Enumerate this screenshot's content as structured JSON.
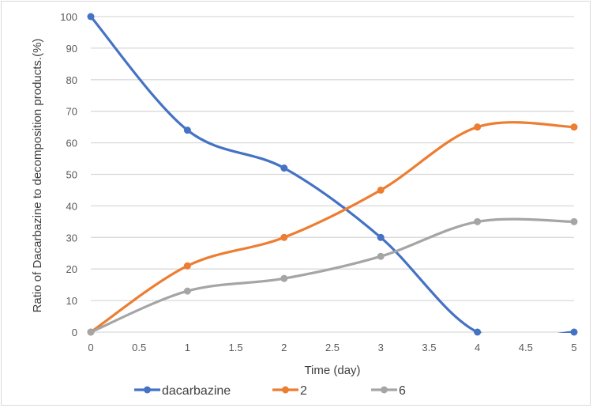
{
  "chart_data": {
    "type": "line",
    "smoothed": true,
    "title": "",
    "xlabel": "Time (day)",
    "ylabel": "Ratio of Dacarbazine to decomposition products.(%)",
    "x": [
      0,
      1,
      2,
      3,
      4,
      5
    ],
    "xlim": [
      0,
      5
    ],
    "ylim": [
      0,
      100
    ],
    "x_ticks": [
      "0",
      "0.5",
      "1",
      "1.5",
      "2",
      "2.5",
      "3",
      "3.5",
      "4",
      "4.5",
      "5"
    ],
    "y_ticks": [
      "0",
      "10",
      "20",
      "30",
      "40",
      "50",
      "60",
      "70",
      "80",
      "90",
      "100"
    ],
    "grid": "horizontal",
    "legend_position": "bottom",
    "series": [
      {
        "name": "dacarbazine",
        "color": "#4472c4",
        "values": [
          100,
          64,
          52,
          30,
          0,
          0
        ]
      },
      {
        "name": "2",
        "color": "#ed7d31",
        "values": [
          0,
          21,
          30,
          45,
          65,
          65
        ]
      },
      {
        "name": "6",
        "color": "#a5a5a5",
        "values": [
          0,
          13,
          17,
          24,
          35,
          35
        ]
      }
    ]
  },
  "colors": {
    "grid": "#d9d9d9",
    "border": "#d9d9d9",
    "tick_text": "#595959",
    "title_text": "#404040"
  }
}
